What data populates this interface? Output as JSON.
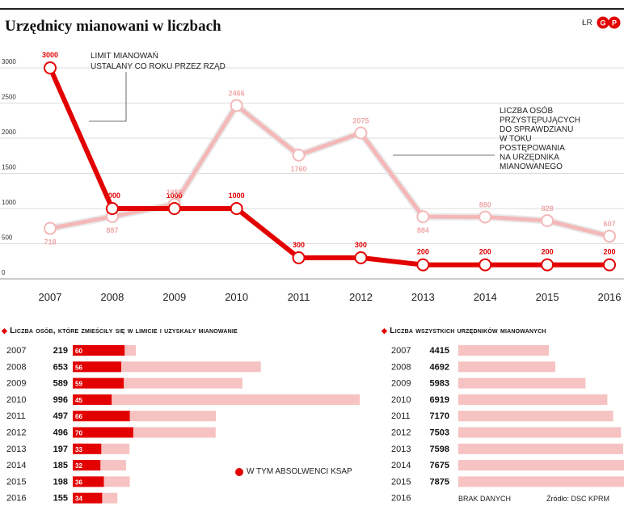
{
  "title": "Urzędnicy mianowani w liczbach",
  "credit": "ŁR",
  "logo_text": "GP",
  "chart_data": [
    {
      "type": "line",
      "x": [
        2007,
        2008,
        2009,
        2010,
        2011,
        2012,
        2013,
        2014,
        2015,
        2016
      ],
      "ylim": [
        0,
        3000
      ],
      "yticks": [
        0,
        500,
        1000,
        1500,
        2000,
        2500,
        3000
      ],
      "series": [
        {
          "name": "Limit mianowań ustalany co roku przez rząd",
          "color": "#e30000",
          "values": [
            3000,
            1000,
            1000,
            1000,
            300,
            300,
            200,
            200,
            200,
            200
          ],
          "labels": [
            "3000",
            "1000",
            "1000",
            "1000",
            "300",
            "300",
            "200",
            "200",
            "200",
            "200"
          ]
        },
        {
          "name": "Liczba osób przystępujących do sprawdzianu w toku postępowania na urzędnika mianowanego",
          "color": "#f4b8b8",
          "values": [
            718,
            887,
            1059,
            2466,
            1760,
            2075,
            884,
            880,
            828,
            607
          ],
          "labels": [
            "718",
            "887",
            "1059",
            "2466",
            "1760",
            "2075",
            "884",
            "880",
            "828",
            "607"
          ]
        }
      ],
      "annotations": {
        "limit": [
          "LIMIT MIANOWAŃ",
          "USTALANY CO ROKU PRZEZ RZĄD"
        ],
        "applicants": [
          "LICZBA OSÓB",
          "PRZYSTĘPUJĄCYCH",
          "DO SPRAWDZIANU",
          "W TOKU",
          "POSTĘPOWANIA",
          "NA URZĘDNIKA",
          "MIANOWANEGO"
        ]
      }
    },
    {
      "type": "bar",
      "title": "Liczba osób, które zmieściły się w limicie i uzyskały mianowanie",
      "categories": [
        "2007",
        "2008",
        "2009",
        "2010",
        "2011",
        "2012",
        "2013",
        "2014",
        "2015",
        "2016"
      ],
      "values": [
        219,
        653,
        589,
        996,
        497,
        496,
        197,
        185,
        198,
        155
      ],
      "ksap": [
        60,
        56,
        59,
        45,
        66,
        70,
        33,
        32,
        36,
        34
      ],
      "legend": "W TYM ABSOLWENCI KSAP"
    },
    {
      "type": "bar",
      "title": "Liczba wszystkich urzędników mianowanych",
      "categories": [
        "2007",
        "2008",
        "2009",
        "2010",
        "2011",
        "2012",
        "2013",
        "2014",
        "2015",
        "2016"
      ],
      "values": [
        4415,
        4692,
        5983,
        6919,
        7170,
        7503,
        7598,
        7675,
        7875,
        null
      ],
      "labels": [
        "4415",
        "4692",
        "5983",
        "6919",
        "7170",
        "7503",
        "7598",
        "7675",
        "7875",
        ""
      ],
      "no_data": "BRAK DANYCH"
    }
  ],
  "source": "Źródło: DSC KPRM"
}
